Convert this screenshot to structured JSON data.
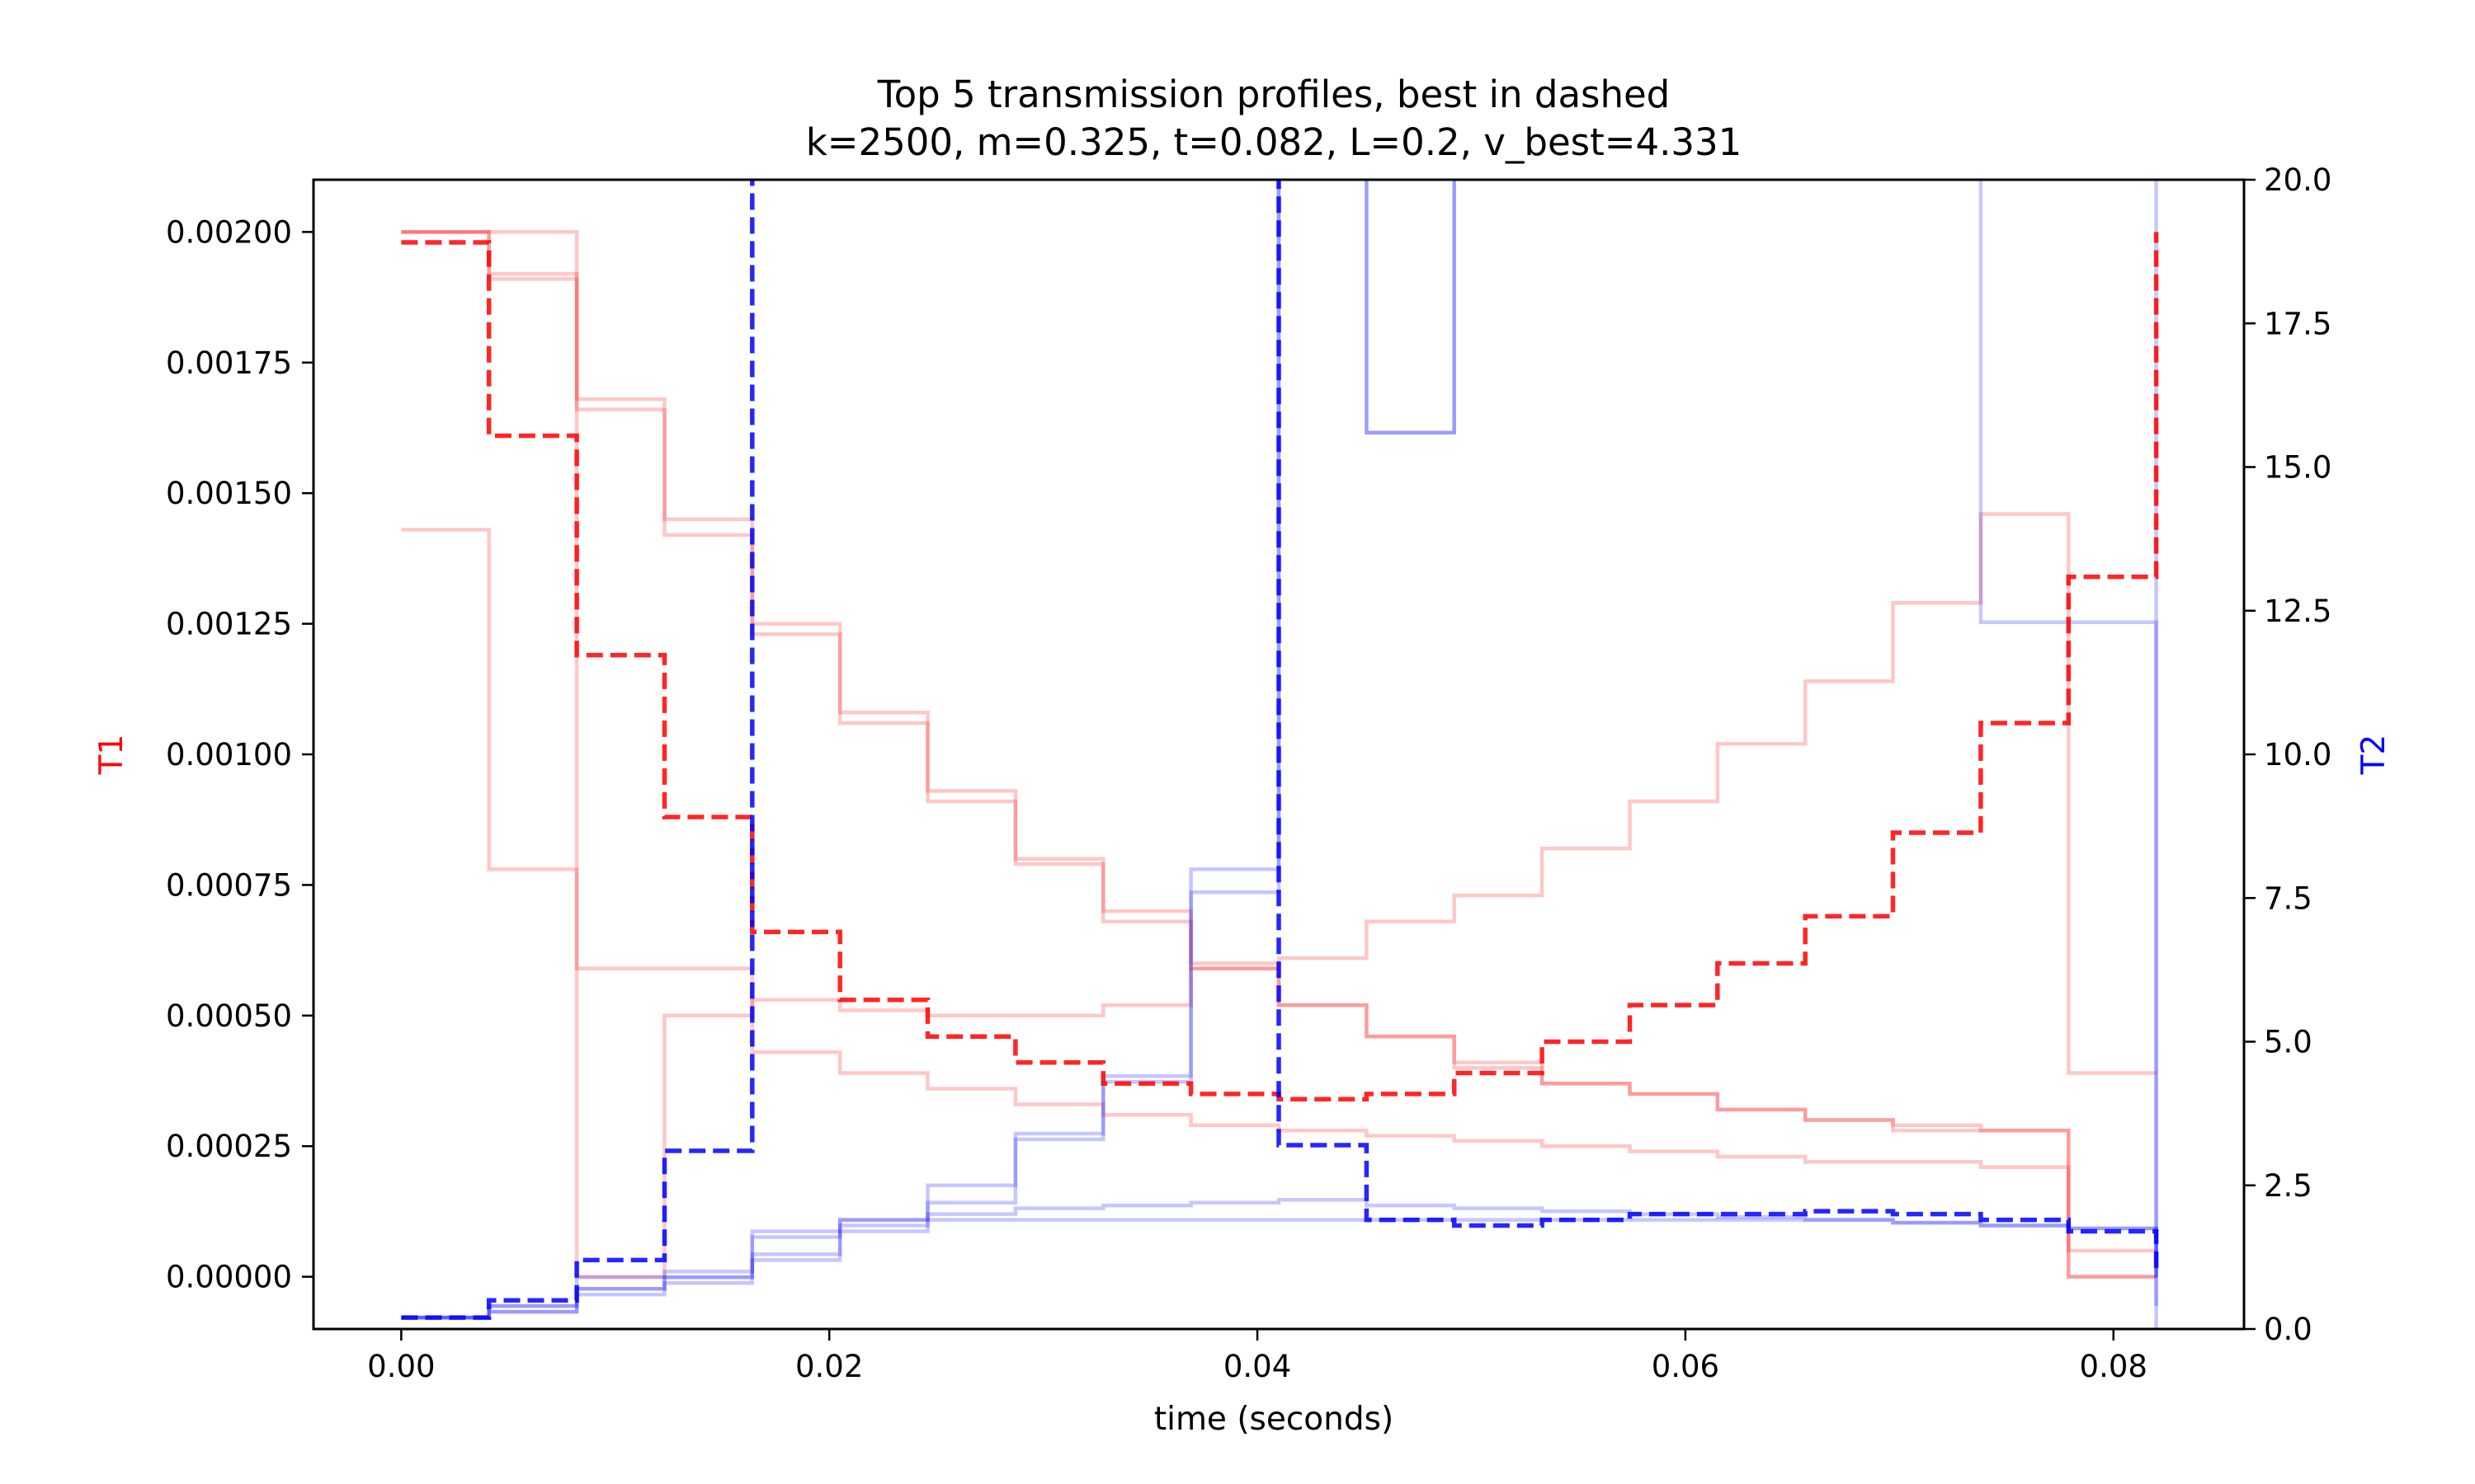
{
  "chart_data": {
    "type": "line",
    "title": "Top 5 transmission profiles, best in dashed",
    "subtitle": "k=2500, m=0.325, t=0.082, L=0.2, v_best=4.331",
    "xlabel": "time (seconds)",
    "ylabel_left": "T1",
    "ylabel_right": "T2",
    "xlim": [
      -0.0041,
      0.0861
    ],
    "ylim_left": [
      -0.0001,
      0.0021
    ],
    "ylim_right": [
      0,
      20
    ],
    "x_ticks": [
      0.0,
      0.02,
      0.04,
      0.06,
      0.08
    ],
    "x_tick_labels": [
      "0.00",
      "0.02",
      "0.04",
      "0.06",
      "0.08"
    ],
    "y_left_ticks": [
      0,
      0.00025,
      0.0005,
      0.00075,
      0.001,
      0.00125,
      0.0015,
      0.00175,
      0.002
    ],
    "y_left_tick_labels": [
      "0.00000",
      "0.00025",
      "0.00050",
      "0.00075",
      "0.00100",
      "0.00125",
      "0.00150",
      "0.00175",
      "0.00200"
    ],
    "y_right_ticks": [
      0,
      2.5,
      5,
      7.5,
      10,
      12.5,
      15,
      17.5,
      20
    ],
    "y_right_tick_labels": [
      "0.0",
      "2.5",
      "5.0",
      "7.5",
      "10.0",
      "12.5",
      "15.0",
      "17.5",
      "20.0"
    ],
    "grid": false,
    "step_edges": [
      0.0,
      0.0041,
      0.0082,
      0.0123,
      0.0164,
      0.0205,
      0.0246,
      0.0287,
      0.0328,
      0.0369,
      0.041,
      0.0451,
      0.0492,
      0.0533,
      0.0574,
      0.0615,
      0.0656,
      0.0697,
      0.0738,
      0.0779,
      0.082
    ],
    "colors": {
      "T1": "#ff0000",
      "T2": "#0000ff"
    },
    "series": [
      {
        "axis": "T1",
        "best": true,
        "values": [
          0.00198,
          0.00161,
          0.00119,
          0.00088,
          0.00066,
          0.00053,
          0.00046,
          0.00041,
          0.00037,
          0.00035,
          0.00034,
          0.00035,
          0.00039,
          0.00045,
          0.00052,
          0.0006,
          0.00069,
          0.00085,
          0.00106,
          0.00134,
          0.002
        ]
      },
      {
        "axis": "T1",
        "best": false,
        "values": [
          0.002,
          0.002,
          0.00166,
          0.00145,
          0.00125,
          0.00108,
          0.00093,
          0.0008,
          0.0007,
          0.0006,
          0.00052,
          0.00046,
          0.00041,
          0.00037,
          0.00035,
          0.00032,
          0.0003,
          0.00029,
          0.00028,
          5e-05,
          5e-05
        ]
      },
      {
        "axis": "T1",
        "best": false,
        "values": [
          0.002,
          0.00191,
          0.00168,
          0.00142,
          0.00123,
          0.00106,
          0.00091,
          0.00079,
          0.00068,
          0.00059,
          0.00052,
          0.00046,
          0.0004,
          0.00037,
          0.00035,
          0.00032,
          0.0003,
          0.00028,
          0.00028,
          0.0,
          0.0
        ]
      },
      {
        "axis": "T1",
        "best": false,
        "values": [
          0.002,
          0.00192,
          0.0,
          0.0005,
          0.00053,
          0.00051,
          0.0005,
          0.0005,
          0.00052,
          0.00059,
          0.00061,
          0.00068,
          0.00073,
          0.00082,
          0.00091,
          0.00102,
          0.00114,
          0.00129,
          0.00146,
          0.00039,
          0.00039
        ]
      },
      {
        "axis": "T1",
        "best": false,
        "values": [
          0.00143,
          0.00078,
          0.00059,
          0.00059,
          0.00043,
          0.00039,
          0.00036,
          0.00033,
          0.00031,
          0.00029,
          0.00028,
          0.00027,
          0.00026,
          0.00025,
          0.00024,
          0.00023,
          0.00022,
          0.00022,
          0.00021,
          0.0,
          0.0
        ]
      },
      {
        "axis": "T2",
        "best": true,
        "values": [
          0.2,
          0.5,
          1.2,
          3.1,
          25.0,
          25.0,
          25.0,
          25.0,
          25.0,
          25.0,
          3.2,
          1.9,
          1.8,
          1.9,
          2.0,
          2.0,
          2.05,
          2.0,
          1.9,
          1.7,
          1.0
        ]
      },
      {
        "axis": "T2",
        "best": false,
        "values": [
          0.2,
          0.3,
          0.6,
          0.9,
          1.3,
          1.7,
          2.2,
          3.3,
          4.4,
          8.0,
          25.0,
          15.6,
          25.0,
          25.0,
          25.0,
          25.0,
          25.0,
          25.0,
          25.0,
          25.0,
          0.4
        ]
      },
      {
        "axis": "T2",
        "best": false,
        "values": [
          0.2,
          0.4,
          0.7,
          0.9,
          1.2,
          1.8,
          2.5,
          3.4,
          4.3,
          7.6,
          25.0,
          15.6,
          25.0,
          25.0,
          25.0,
          25.0,
          25.0,
          25.0,
          12.3,
          12.3,
          0.0
        ]
      },
      {
        "axis": "T2",
        "best": false,
        "values": [
          0.2,
          0.4,
          0.9,
          1.0,
          1.7,
          1.9,
          2.0,
          2.1,
          2.15,
          2.2,
          2.25,
          2.15,
          2.1,
          2.05,
          2.0,
          1.95,
          1.9,
          1.85,
          1.8,
          1.75,
          0.9
        ]
      },
      {
        "axis": "T2",
        "best": false,
        "values": [
          0.2,
          0.3,
          0.7,
          0.8,
          1.6,
          1.9,
          1.9,
          1.9,
          1.9,
          1.9,
          1.9,
          1.9,
          1.9,
          1.9,
          1.9,
          1.9,
          1.9,
          1.85,
          1.8,
          1.75,
          0.9
        ]
      }
    ]
  }
}
